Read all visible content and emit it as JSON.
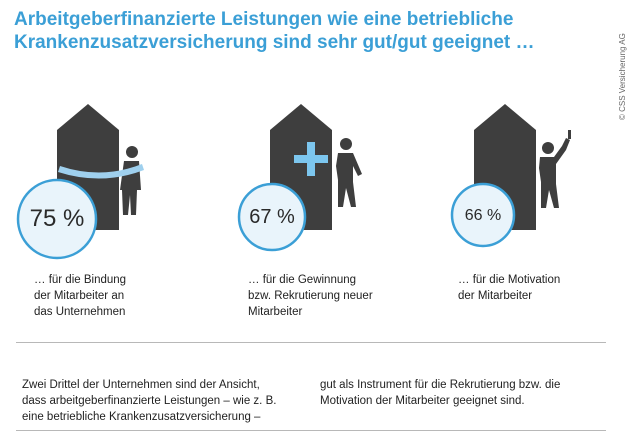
{
  "title": {
    "line1": "Arbeitgeberfinanzierte Leistungen wie eine betriebliche",
    "line2": "Krankenzusatzversicherung sind sehr gut/gut geeignet …"
  },
  "copyright": "© CSS Versicherung AG",
  "chart_data": {
    "type": "infographic",
    "values": [
      75,
      67,
      66
    ],
    "labels": [
      "75 %",
      "67 %",
      "66 %"
    ],
    "categories": [
      "… für die Bindung der Mitarbeiter an das Unternehmen",
      "… für die Gewinnung bzw. Rekrutierung neuer Mitarbeiter",
      "… für die Motivation der Mitarbeiter"
    ]
  },
  "captions": [
    [
      "… für die Bindung",
      "der Mitarbeiter an",
      "das Unternehmen"
    ],
    [
      "… für die Gewinnung",
      "bzw. Rekrutierung neuer",
      "Mitarbeiter"
    ],
    [
      "… für die Motivation",
      "der Mitarbeiter"
    ]
  ],
  "footer": {
    "col1": [
      "Zwei Drittel der Unternehmen sind der Ansicht,",
      "dass arbeitgeberfinanzierte Leistungen – wie z. B.",
      "eine betriebliche Krankenzusatzversicherung –"
    ],
    "col2": [
      "gut als Instrument für die Rekrutierung bzw. die",
      "Motivation der Mitarbeiter geeignet sind."
    ]
  },
  "colors": {
    "accent": "#3b9fd6",
    "circle_fill": "#e9f4fb",
    "circle_stroke": "#3b9fd6",
    "house": "#3e3e3e",
    "text": "#222222"
  },
  "icons": [
    "house-with-person-hugging-icon",
    "house-with-cross-and-person-icon",
    "house-with-person-thumbs-up-icon"
  ]
}
